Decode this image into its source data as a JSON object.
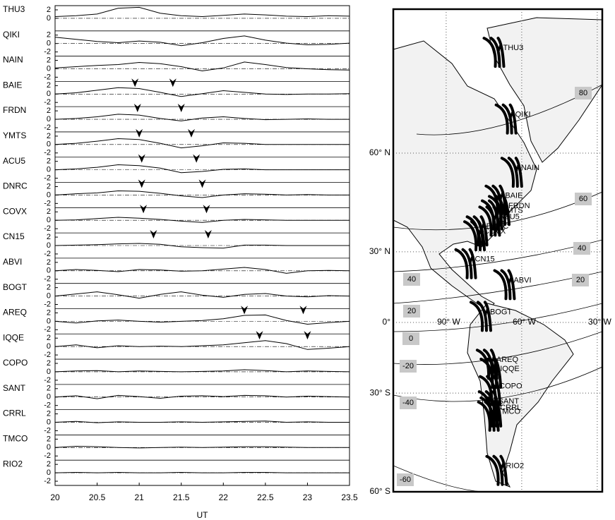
{
  "chart_data": [
    {
      "type": "stacked-line",
      "xlabel": "UT",
      "x": [
        20,
        20.25,
        20.5,
        20.75,
        21,
        21.25,
        21.5,
        21.75,
        22,
        22.25,
        22.5,
        22.75,
        23,
        23.25,
        23.5
      ],
      "xlim": [
        20,
        23.5
      ],
      "xticks": [
        20,
        20.5,
        21,
        21.5,
        22,
        22.5,
        23,
        23.5
      ],
      "ylim": [
        -3,
        3
      ],
      "color": "#000000",
      "panels": [
        {
          "name": "THU3",
          "yticks": [
            0,
            2
          ],
          "values": [
            0.4,
            0.6,
            1.0,
            2.4,
            2.6,
            1.2,
            0.6,
            0.4,
            0.7,
            1.0,
            0.8,
            0.5,
            0.4,
            0.6,
            0.5
          ],
          "arrows": []
        },
        {
          "name": "QIKI",
          "yticks": [
            -2,
            0,
            2
          ],
          "values": [
            1.5,
            1.0,
            0.5,
            0.2,
            0.6,
            0.3,
            -0.5,
            0.2,
            1.2,
            1.8,
            0.8,
            0.1,
            -0.3,
            -0.2,
            0.1
          ],
          "arrows": []
        },
        {
          "name": "NAIN",
          "yticks": [
            -2,
            0,
            2
          ],
          "values": [
            0.2,
            0.5,
            0.8,
            1.0,
            1.5,
            1.2,
            0.5,
            -0.5,
            0.2,
            1.6,
            1.0,
            0.3,
            0.0,
            -0.2,
            -0.3
          ],
          "arrows": []
        },
        {
          "name": "BAIE",
          "yticks": [
            -2,
            0,
            2
          ],
          "values": [
            0,
            0.3,
            0.9,
            1.5,
            1.3,
            0.4,
            -0.6,
            0.1,
            0.8,
            0.4,
            0,
            -0.1,
            0,
            0,
            0.1
          ],
          "arrows": [
            20.95,
            21.4
          ]
        },
        {
          "name": "FRDN",
          "yticks": [
            -2,
            0,
            2
          ],
          "values": [
            0,
            0.2,
            0.6,
            1.2,
            1.0,
            0.2,
            -0.4,
            0.3,
            0.6,
            0.2,
            -0.1,
            0,
            0.1,
            0,
            0
          ],
          "arrows": [
            20.98,
            21.5
          ]
        },
        {
          "name": "YMTS",
          "yticks": [
            -2,
            0,
            2
          ],
          "values": [
            0,
            0.3,
            0.8,
            1.4,
            1.2,
            0.3,
            -0.8,
            -0.3,
            0.4,
            0.3,
            0,
            0,
            0,
            0,
            0
          ],
          "arrows": [
            21.0,
            21.62
          ]
        },
        {
          "name": "ACU5",
          "yticks": [
            -2,
            0,
            2
          ],
          "values": [
            0,
            0.2,
            0.6,
            1.2,
            1.0,
            0.4,
            -0.7,
            -0.4,
            0.1,
            0.2,
            0,
            0,
            0,
            0,
            0
          ],
          "arrows": [
            21.03,
            21.68
          ]
        },
        {
          "name": "DNRC",
          "yticks": [
            -2,
            0,
            2
          ],
          "values": [
            0,
            0.3,
            0.5,
            1.0,
            0.9,
            0.4,
            -0.2,
            -0.6,
            0,
            0.3,
            0.2,
            0,
            0.1,
            0,
            0
          ],
          "arrows": [
            21.03,
            21.75
          ]
        },
        {
          "name": "COVX",
          "yticks": [
            -2,
            0,
            2
          ],
          "values": [
            0,
            0.1,
            0.4,
            0.7,
            0.5,
            0.2,
            -0.2,
            -0.5,
            0,
            0.2,
            0.1,
            0,
            0,
            0,
            0
          ],
          "arrows": [
            21.05,
            21.8
          ]
        },
        {
          "name": "CN15",
          "yticks": [
            -2,
            0,
            2
          ],
          "values": [
            0,
            0.1,
            0.2,
            0.4,
            0.5,
            0.3,
            -0.3,
            -0.5,
            -0.6,
            0.1,
            0.1,
            0,
            0,
            0,
            0
          ],
          "arrows": [
            21.17,
            21.82
          ]
        },
        {
          "name": "ABVI",
          "yticks": [
            -2,
            0,
            2
          ],
          "values": [
            0,
            0.3,
            0.1,
            -0.2,
            0.3,
            0.2,
            -0.1,
            0,
            0.4,
            0.8,
            0.3,
            -0.6,
            0,
            0.1,
            0
          ],
          "arrows": []
        },
        {
          "name": "BOGT",
          "yticks": [
            -2,
            0,
            2
          ],
          "values": [
            0,
            0.5,
            1.0,
            0.3,
            -0.5,
            0.4,
            1.0,
            0.2,
            -0.3,
            0.4,
            0.6,
            0,
            -0.2,
            0.1,
            0
          ],
          "arrows": []
        },
        {
          "name": "AREQ",
          "yticks": [
            -2,
            0,
            2
          ],
          "values": [
            0,
            -0.4,
            0.1,
            0.3,
            0,
            -0.2,
            0,
            0.2,
            0.6,
            1.4,
            1.5,
            0.2,
            -0.7,
            -0.3,
            0
          ],
          "arrows": [
            22.25,
            22.95
          ]
        },
        {
          "name": "IQQE",
          "yticks": [
            -2,
            0,
            2
          ],
          "values": [
            0,
            0.4,
            -0.3,
            0.2,
            0,
            0.1,
            0,
            0.2,
            0.4,
            0.9,
            1.4,
            0.7,
            -0.7,
            -0.4,
            0
          ],
          "arrows": [
            22.43,
            23.0
          ]
        },
        {
          "name": "COPO",
          "yticks": [
            -2,
            0,
            2
          ],
          "values": [
            0,
            0.2,
            0.3,
            0,
            0.2,
            0.1,
            0,
            0.1,
            0.2,
            0.5,
            0.3,
            0,
            0.2,
            0.1,
            0
          ],
          "arrows": []
        },
        {
          "name": "SANT",
          "yticks": [
            -2,
            0,
            2
          ],
          "values": [
            0,
            0.3,
            -0.4,
            0.4,
            0.1,
            -0.3,
            0.2,
            0.3,
            0.1,
            0.4,
            0.3,
            0,
            0.2,
            0.1,
            0
          ],
          "arrows": []
        },
        {
          "name": "CRRL",
          "yticks": [
            -2,
            0,
            2
          ],
          "values": [
            0,
            0.2,
            -0.1,
            0.1,
            0,
            0,
            0.1,
            0,
            0.1,
            0.2,
            0.3,
            0,
            0.1,
            0,
            0
          ],
          "arrows": []
        },
        {
          "name": "TMCO",
          "yticks": [
            -2,
            0,
            2
          ],
          "values": [
            0,
            0.3,
            0.2,
            0,
            -0.1,
            0,
            0.1,
            0,
            0.1,
            0.2,
            0.2,
            0.1,
            0,
            0,
            0
          ],
          "arrows": []
        },
        {
          "name": "RIO2",
          "yticks": [
            -2,
            0,
            2
          ],
          "values": [
            0,
            0.1,
            0,
            0.1,
            0,
            0,
            0.1,
            0,
            0,
            0.1,
            0.1,
            0,
            0,
            0,
            0
          ],
          "arrows": []
        }
      ]
    },
    {
      "type": "map",
      "xlim": [
        -111,
        -28
      ],
      "ylim": [
        -60,
        80
      ],
      "xticks": [
        {
          "value": -90,
          "label": "90° W"
        },
        {
          "value": -60,
          "label": "60° W"
        },
        {
          "value": -30,
          "label": "30° W"
        }
      ],
      "yticks": [
        {
          "value": 60,
          "label": "60° N"
        },
        {
          "value": 30,
          "label": "30° N"
        },
        {
          "value": 0,
          "label": "0°"
        },
        {
          "value": -30,
          "label": "30° S"
        },
        {
          "value": -60,
          "label": "60° S"
        }
      ],
      "contour_labels": [
        80,
        60,
        40,
        20,
        40,
        20,
        0,
        -20,
        -40,
        -60
      ],
      "stations": [
        {
          "name": "THU3",
          "lon": -68.8,
          "lat": 76.5
        },
        {
          "name": "QIKI",
          "lon": -64,
          "lat": 67.5
        },
        {
          "name": "NAIN",
          "lon": -61.7,
          "lat": 56.5
        },
        {
          "name": "BAIE",
          "lon": -68,
          "lat": 49
        },
        {
          "name": "FRDN",
          "lon": -66.7,
          "lat": 45.9
        },
        {
          "name": "YMTS",
          "lon": -69.5,
          "lat": 44.5
        },
        {
          "name": "ACU5",
          "lon": -70.5,
          "lat": 42.5
        },
        {
          "name": "DNRC",
          "lon": -75.5,
          "lat": 39.2
        },
        {
          "name": "COVX",
          "lon": -76.5,
          "lat": 37.5
        },
        {
          "name": "CN15",
          "lon": -80,
          "lat": 27
        },
        {
          "name": "ABVI",
          "lon": -64.6,
          "lat": 18.4
        },
        {
          "name": "BOGT",
          "lon": -74,
          "lat": 4.6
        },
        {
          "name": "AREQ",
          "lon": -71.5,
          "lat": -16.5
        },
        {
          "name": "IQQE",
          "lon": -70,
          "lat": -20.3
        },
        {
          "name": "COPO",
          "lon": -70.3,
          "lat": -27.4
        },
        {
          "name": "SANT",
          "lon": -70.7,
          "lat": -33.2
        },
        {
          "name": "CRRL",
          "lon": -70,
          "lat": -35.5
        },
        {
          "name": "TMCO",
          "lon": -71,
          "lat": -37
        },
        {
          "name": "RIO2",
          "lon": -67.7,
          "lat": -53.8
        }
      ]
    }
  ]
}
